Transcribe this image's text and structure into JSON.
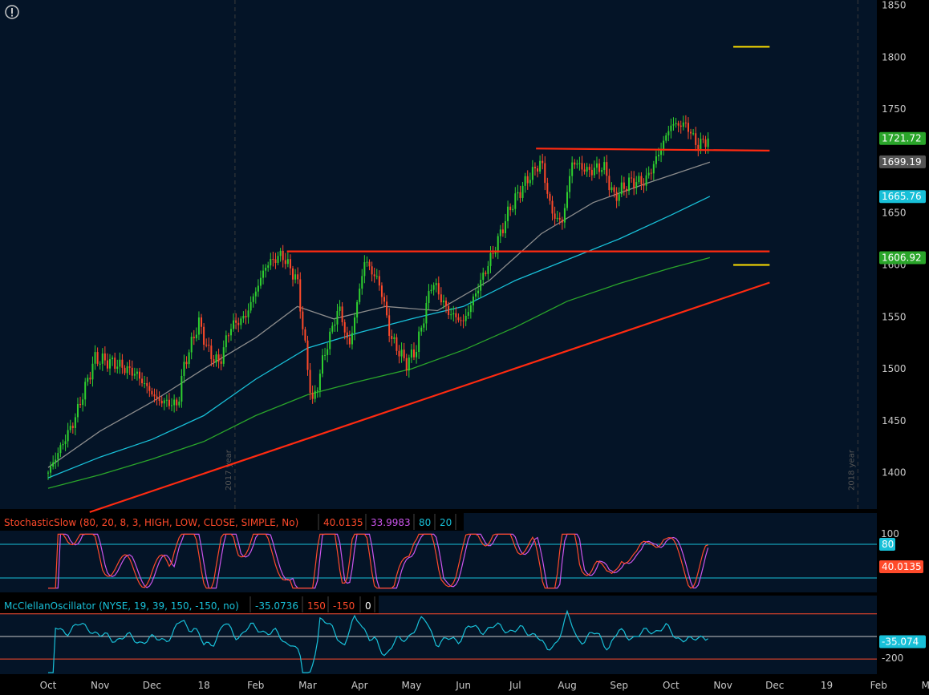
{
  "chart_data": [
    {
      "type": "candlestick",
      "ylim": [
        1365,
        1855
      ],
      "y_ticks": [
        1400,
        1450,
        1500,
        1550,
        1600,
        1650,
        1700,
        1750,
        1800,
        1850
      ],
      "x_months": [
        "Oct",
        "Nov",
        "Dec",
        "18",
        "Feb",
        "Mar",
        "Apr",
        "May",
        "Jun",
        "Jul",
        "Aug",
        "Sep",
        "Oct",
        "Nov",
        "Dec",
        "19",
        "Feb",
        "Mar"
      ],
      "year_markers": [
        {
          "label": "2017 year",
          "month": 3.6
        },
        {
          "label": "2018 year",
          "month": 15.6
        }
      ],
      "price_labels": [
        {
          "value": "1721.72",
          "color": "#2aa52a",
          "y": 1721.72
        },
        {
          "value": "1699.19",
          "color": "#555555",
          "y": 1699.19
        },
        {
          "value": "1665.76",
          "color": "#18c0d8",
          "y": 1665.76
        },
        {
          "value": "1606.92",
          "color": "#2aa52a",
          "y": 1606.92
        }
      ],
      "ohlc_close_keypoints": [
        [
          0.0,
          1400
        ],
        [
          0.5,
          1450
        ],
        [
          0.9,
          1510
        ],
        [
          1.3,
          1505
        ],
        [
          1.7,
          1495
        ],
        [
          2.1,
          1470
        ],
        [
          2.5,
          1465
        ],
        [
          2.6,
          1500
        ],
        [
          2.9,
          1545
        ],
        [
          3.1,
          1515
        ],
        [
          3.3,
          1505
        ],
        [
          3.5,
          1540
        ],
        [
          3.8,
          1550
        ],
        [
          4.2,
          1600
        ],
        [
          4.5,
          1610
        ],
        [
          4.8,
          1585
        ],
        [
          5.0,
          1500
        ],
        [
          5.1,
          1465
        ],
        [
          5.3,
          1510
        ],
        [
          5.6,
          1560
        ],
        [
          5.8,
          1520
        ],
        [
          6.1,
          1605
        ],
        [
          6.4,
          1580
        ],
        [
          6.6,
          1530
        ],
        [
          6.9,
          1505
        ],
        [
          7.1,
          1520
        ],
        [
          7.4,
          1585
        ],
        [
          7.7,
          1555
        ],
        [
          8.0,
          1545
        ],
        [
          8.3,
          1580
        ],
        [
          8.6,
          1615
        ],
        [
          8.9,
          1655
        ],
        [
          9.2,
          1680
        ],
        [
          9.5,
          1700
        ],
        [
          9.7,
          1650
        ],
        [
          9.9,
          1640
        ],
        [
          10.1,
          1700
        ],
        [
          10.4,
          1690
        ],
        [
          10.7,
          1695
        ],
        [
          10.9,
          1665
        ],
        [
          11.2,
          1680
        ],
        [
          11.5,
          1680
        ],
        [
          11.7,
          1700
        ],
        [
          12.0,
          1735
        ],
        [
          12.3,
          1735
        ],
        [
          12.5,
          1715
        ],
        [
          12.75,
          1722
        ]
      ],
      "moving_averages": [
        {
          "color": "#8c8c8c",
          "points": [
            [
              0.0,
              1405
            ],
            [
              1.0,
              1440
            ],
            [
              2.0,
              1468
            ],
            [
              3.0,
              1500
            ],
            [
              4.0,
              1530
            ],
            [
              4.8,
              1560
            ],
            [
              5.5,
              1548
            ],
            [
              6.5,
              1560
            ],
            [
              7.5,
              1556
            ],
            [
              8.5,
              1585
            ],
            [
              9.5,
              1630
            ],
            [
              10.5,
              1660
            ],
            [
              11.5,
              1678
            ],
            [
              12.75,
              1699
            ]
          ]
        },
        {
          "color": "#18c0d8",
          "points": [
            [
              0.0,
              1395
            ],
            [
              1.0,
              1415
            ],
            [
              2.0,
              1432
            ],
            [
              3.0,
              1455
            ],
            [
              4.0,
              1490
            ],
            [
              5.0,
              1520
            ],
            [
              6.0,
              1535
            ],
            [
              7.0,
              1548
            ],
            [
              8.0,
              1560
            ],
            [
              9.0,
              1585
            ],
            [
              10.0,
              1605
            ],
            [
              11.0,
              1625
            ],
            [
              12.0,
              1648
            ],
            [
              12.75,
              1666
            ]
          ]
        },
        {
          "color": "#2aa52a",
          "points": [
            [
              0.0,
              1385
            ],
            [
              1.0,
              1398
            ],
            [
              2.0,
              1413
            ],
            [
              3.0,
              1430
            ],
            [
              4.0,
              1455
            ],
            [
              5.0,
              1475
            ],
            [
              6.0,
              1488
            ],
            [
              7.0,
              1500
            ],
            [
              8.0,
              1518
            ],
            [
              9.0,
              1540
            ],
            [
              10.0,
              1565
            ],
            [
              11.0,
              1582
            ],
            [
              12.0,
              1597
            ],
            [
              12.75,
              1607
            ]
          ]
        }
      ],
      "trend_lines": [
        {
          "color": "#ff2a10",
          "from": [
            0.8,
            1362
          ],
          "to": [
            13.9,
            1583
          ]
        },
        {
          "color": "#ff2a10",
          "from": [
            4.6,
            1613
          ],
          "to": [
            13.9,
            1613
          ]
        },
        {
          "color": "#ff2a10",
          "from": [
            9.4,
            1712
          ],
          "to": [
            13.9,
            1710
          ]
        }
      ],
      "target_marks": [
        {
          "color": "#ffe000",
          "y": 1810,
          "from": 13.2,
          "to": 13.9
        },
        {
          "color": "#ffe000",
          "y": 1600,
          "from": 13.2,
          "to": 13.9
        }
      ]
    },
    {
      "type": "line",
      "header": [
        {
          "text": "StochasticSlow (80, 20, 8, 3, HIGH, LOW, CLOSE, SIMPLE, No)",
          "color": "#ff4a2a"
        },
        {
          "text": "40.0135",
          "color": "#ff4a2a"
        },
        {
          "text": "33.9983",
          "color": "#cc55ee"
        },
        {
          "text": "80",
          "color": "#18c0d8"
        },
        {
          "text": "20",
          "color": "#18c0d8"
        }
      ],
      "levels": [
        80,
        20
      ],
      "scale_top_label": "100",
      "right_labels": [
        {
          "value": "80",
          "color": "#18c0d8",
          "level": 80
        },
        {
          "value": "40.0135",
          "color": "#ff4a2a",
          "level": 40
        }
      ],
      "series": [
        {
          "color": "#ff4a2a"
        },
        {
          "color": "#cc55ee"
        }
      ]
    },
    {
      "type": "line",
      "header": [
        {
          "text": "McClellanOscillator (NYSE, 19, 39, 150, -150, no)",
          "color": "#18c0d8"
        },
        {
          "text": "-35.0736",
          "color": "#18c0d8"
        },
        {
          "text": "150",
          "color": "#ff4a2a"
        },
        {
          "text": "-150",
          "color": "#ff4a2a"
        },
        {
          "text": "0",
          "color": "#ffffff"
        }
      ],
      "levels": [
        150,
        0,
        -150
      ],
      "axis_label": "-200",
      "right_label": {
        "value": "-35.074",
        "color": "#18c0d8",
        "level": -35
      }
    }
  ]
}
